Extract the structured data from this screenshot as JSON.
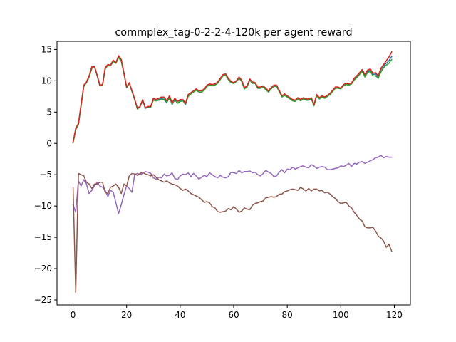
{
  "chart_data": {
    "type": "line",
    "title": "commplex_tag-0-2-2-4-120k per agent reward",
    "xlabel": "",
    "ylabel": "",
    "xlim": [
      -6,
      126
    ],
    "ylim": [
      -25.8,
      16.3
    ],
    "xticks": [
      0,
      20,
      40,
      60,
      80,
      100,
      120
    ],
    "yticks": [
      15,
      10,
      5,
      0,
      -5,
      -10,
      -15,
      -20,
      -25
    ],
    "xtick_labels": [
      "0",
      "20",
      "40",
      "60",
      "80",
      "100",
      "120"
    ],
    "ytick_labels": [
      "15",
      "10",
      "5",
      "0",
      "−5",
      "−10",
      "−15",
      "−20",
      "−25"
    ],
    "grid": false,
    "legend": "none",
    "series": [
      {
        "color": "#1f77b4",
        "values": [
          0.1,
          2.2,
          3.0,
          6.0,
          9.1,
          9.7,
          10.6,
          12.0,
          12.2,
          10.8,
          9.2,
          9.3,
          11.9,
          12.5,
          12.4,
          13.1,
          12.8,
          13.8,
          13.2,
          11.2,
          8.9,
          9.6,
          8.3,
          7.0,
          5.5,
          5.8,
          6.9,
          5.6,
          5.8,
          5.8,
          7.0,
          6.8,
          7.0,
          7.2,
          7.0,
          6.5,
          7.4,
          6.2,
          7.0,
          6.4,
          6.8,
          6.8,
          6.2,
          7.6,
          7.9,
          8.2,
          8.5,
          8.2,
          8.2,
          8.5,
          9.1,
          9.4,
          9.2,
          9.3,
          9.6,
          10.2,
          10.8,
          11.0,
          10.2,
          9.7,
          9.6,
          9.9,
          10.4,
          9.9,
          8.7,
          9.1,
          10.1,
          9.6,
          9.6,
          8.8,
          8.8,
          9.0,
          8.7,
          8.2,
          8.8,
          9.2,
          9.2,
          8.3,
          7.5,
          7.7,
          7.4,
          7.2,
          6.8,
          6.8,
          7.2,
          6.9,
          7.2,
          7.0,
          7.0,
          7.2,
          6.1,
          7.7,
          7.1,
          7.5,
          7.3,
          7.6,
          7.9,
          8.4,
          8.9,
          8.9,
          8.7,
          9.3,
          9.5,
          9.4,
          9.5,
          10.2,
          10.6,
          11.1,
          11.6,
          10.8,
          11.5,
          11.7,
          11.0,
          11.1,
          10.6,
          11.8,
          12.4,
          12.8,
          13.2,
          13.9
        ]
      },
      {
        "color": "#ff7f0e",
        "values": [
          0.2,
          2.4,
          3.2,
          6.2,
          9.3,
          9.8,
          10.8,
          12.2,
          12.3,
          10.9,
          9.3,
          9.4,
          12.1,
          12.6,
          12.5,
          13.3,
          12.9,
          14.0,
          13.4,
          11.3,
          9.0,
          9.7,
          8.4,
          7.1,
          5.6,
          5.9,
          7.0,
          5.7,
          5.9,
          5.9,
          7.2,
          7.0,
          7.2,
          7.4,
          7.4,
          6.8,
          7.6,
          6.5,
          7.2,
          6.7,
          7.0,
          7.0,
          6.4,
          7.8,
          8.1,
          8.4,
          8.7,
          8.4,
          8.4,
          8.7,
          9.3,
          9.5,
          9.4,
          9.5,
          9.8,
          10.4,
          11.0,
          11.1,
          10.4,
          9.9,
          9.7,
          10.0,
          10.6,
          10.1,
          8.9,
          9.2,
          10.3,
          9.8,
          9.7,
          9.0,
          9.0,
          9.2,
          8.8,
          8.4,
          8.9,
          9.3,
          9.3,
          8.5,
          7.6,
          7.9,
          7.6,
          7.3,
          7.0,
          6.9,
          7.3,
          7.0,
          7.3,
          7.1,
          7.1,
          7.3,
          6.2,
          7.8,
          7.3,
          7.6,
          7.4,
          7.7,
          8.0,
          8.5,
          9.0,
          9.0,
          8.8,
          9.4,
          9.6,
          9.5,
          9.6,
          10.4,
          10.8,
          11.3,
          11.8,
          11.0,
          11.7,
          11.9,
          11.2,
          11.3,
          10.8,
          12.0,
          12.6,
          13.2,
          13.8,
          14.6
        ]
      },
      {
        "color": "#2ca02c",
        "values": [
          0.1,
          2.2,
          3.0,
          6.0,
          9.1,
          9.7,
          10.6,
          12.0,
          12.2,
          10.8,
          9.2,
          9.3,
          11.9,
          12.5,
          12.4,
          13.1,
          12.8,
          13.7,
          13.1,
          11.1,
          8.9,
          9.6,
          8.3,
          7.0,
          5.5,
          5.8,
          6.9,
          5.6,
          5.8,
          5.8,
          6.9,
          6.8,
          6.9,
          7.0,
          7.1,
          6.6,
          7.2,
          6.3,
          7.0,
          6.4,
          6.7,
          6.8,
          6.3,
          7.5,
          7.9,
          8.2,
          8.5,
          8.2,
          8.2,
          8.5,
          9.1,
          9.3,
          9.2,
          9.3,
          9.6,
          10.2,
          10.8,
          10.9,
          10.2,
          9.7,
          9.6,
          9.9,
          10.4,
          9.9,
          8.7,
          9.0,
          10.1,
          9.6,
          9.6,
          8.8,
          8.8,
          9.0,
          8.6,
          8.2,
          8.7,
          9.1,
          9.1,
          8.3,
          7.4,
          7.7,
          7.4,
          7.1,
          6.8,
          6.7,
          7.1,
          6.8,
          7.1,
          6.9,
          6.9,
          7.1,
          6.0,
          7.6,
          7.1,
          7.4,
          7.2,
          7.5,
          7.8,
          8.3,
          8.8,
          8.8,
          8.7,
          9.2,
          9.4,
          9.3,
          9.5,
          10.1,
          10.5,
          11.0,
          11.5,
          10.6,
          11.3,
          11.5,
          10.8,
          10.8,
          10.4,
          11.4,
          12.1,
          12.5,
          12.8,
          13.4
        ]
      },
      {
        "color": "#d62728",
        "values": [
          0.2,
          2.4,
          3.2,
          6.2,
          9.3,
          9.8,
          10.8,
          12.2,
          12.3,
          10.9,
          9.3,
          9.4,
          12.1,
          12.6,
          12.5,
          13.3,
          12.9,
          14.0,
          13.4,
          11.3,
          9.0,
          9.7,
          8.4,
          7.1,
          5.6,
          5.9,
          7.0,
          5.7,
          5.9,
          5.9,
          7.2,
          7.0,
          7.2,
          7.4,
          7.4,
          6.8,
          7.6,
          6.5,
          7.2,
          6.7,
          7.0,
          7.0,
          6.4,
          7.8,
          8.1,
          8.4,
          8.7,
          8.4,
          8.4,
          8.7,
          9.3,
          9.5,
          9.4,
          9.5,
          9.8,
          10.4,
          11.0,
          11.1,
          10.4,
          9.9,
          9.7,
          10.0,
          10.6,
          10.1,
          8.9,
          9.2,
          10.3,
          9.8,
          9.7,
          9.0,
          9.0,
          9.2,
          8.8,
          8.4,
          8.9,
          9.3,
          9.3,
          8.5,
          7.6,
          7.9,
          7.6,
          7.3,
          7.0,
          6.9,
          7.3,
          7.0,
          7.3,
          7.1,
          7.1,
          7.3,
          6.2,
          7.8,
          7.3,
          7.6,
          7.4,
          7.7,
          8.0,
          8.5,
          9.0,
          9.0,
          8.8,
          9.4,
          9.6,
          9.5,
          9.6,
          10.4,
          10.8,
          11.3,
          11.8,
          11.0,
          11.7,
          11.9,
          11.2,
          11.3,
          10.8,
          12.0,
          12.6,
          13.2,
          13.8,
          14.6
        ]
      },
      {
        "color": "#9467bd",
        "values": [
          -9.8,
          -11.0,
          -6.0,
          -6.8,
          -5.8,
          -6.5,
          -8.0,
          -7.5,
          -6.8,
          -6.2,
          -6.8,
          -7.0,
          -7.5,
          -8.5,
          -7.5,
          -7.8,
          -9.5,
          -11.2,
          -9.8,
          -8.2,
          -6.8,
          -7.2,
          -7.8,
          -5.0,
          -4.8,
          -5.0,
          -4.8,
          -4.5,
          -4.6,
          -4.8,
          -5.5,
          -5.7,
          -5.4,
          -5.5,
          -4.9,
          -5.2,
          -5.1,
          -4.7,
          -5.6,
          -5.8,
          -5.2,
          -4.9,
          -5.0,
          -4.7,
          -5.3,
          -4.8,
          -5.2,
          -5.7,
          -5.4,
          -5.1,
          -5.3,
          -4.7,
          -5.0,
          -5.3,
          -5.5,
          -5.1,
          -5.4,
          -5.5,
          -5.3,
          -4.6,
          -4.7,
          -4.8,
          -4.3,
          -4.7,
          -4.5,
          -4.5,
          -4.4,
          -4.7,
          -4.6,
          -5.0,
          -5.2,
          -4.8,
          -4.3,
          -4.6,
          -4.8,
          -5.3,
          -5.2,
          -4.6,
          -4.2,
          -4.7,
          -4.1,
          -4.2,
          -3.8,
          -4.1,
          -3.9,
          -3.7,
          -3.6,
          -3.8,
          -3.9,
          -3.4,
          -3.6,
          -4.0,
          -3.8,
          -3.7,
          -3.8,
          -4.2,
          -4.2,
          -4.1,
          -4.0,
          -3.9,
          -3.6,
          -3.7,
          -3.5,
          -3.2,
          -3.7,
          -3.2,
          -3.3,
          -3.0,
          -2.9,
          -3.2,
          -3.0,
          -2.8,
          -2.6,
          -2.3,
          -2.2,
          -1.9,
          -2.3,
          -2.1,
          -2.2,
          -2.2
        ]
      },
      {
        "color": "#8c564b",
        "values": [
          -7.0,
          -23.8,
          -4.8,
          -5.0,
          -5.2,
          -6.2,
          -6.5,
          -7.2,
          -6.5,
          -6.5,
          -6.2,
          -6.2,
          -7.8,
          -8.0,
          -7.0,
          -6.8,
          -6.5,
          -7.0,
          -8.0,
          -6.5,
          -6.8,
          -5.2,
          -4.8,
          -4.9,
          -5.1,
          -4.8,
          -4.6,
          -4.9,
          -5.0,
          -5.2,
          -5.0,
          -5.4,
          -5.8,
          -6.0,
          -6.2,
          -6.0,
          -6.3,
          -6.5,
          -6.6,
          -6.8,
          -7.2,
          -7.5,
          -7.3,
          -7.6,
          -8.0,
          -8.2,
          -8.4,
          -8.6,
          -9.0,
          -9.4,
          -9.3,
          -9.5,
          -10.1,
          -10.3,
          -10.9,
          -11.0,
          -10.9,
          -10.8,
          -10.4,
          -10.6,
          -10.1,
          -10.5,
          -11.0,
          -10.8,
          -10.3,
          -10.5,
          -10.6,
          -9.9,
          -9.6,
          -9.5,
          -9.3,
          -9.2,
          -8.7,
          -8.6,
          -8.5,
          -8.6,
          -8.5,
          -8.1,
          -8.1,
          -7.7,
          -7.6,
          -7.4,
          -7.3,
          -7.4,
          -7.5,
          -7.0,
          -7.3,
          -7.6,
          -7.2,
          -7.6,
          -7.3,
          -7.3,
          -7.6,
          -7.5,
          -7.9,
          -7.8,
          -8.1,
          -8.5,
          -8.8,
          -9.3,
          -9.6,
          -9.5,
          -9.4,
          -10.0,
          -10.3,
          -11.0,
          -11.5,
          -12.1,
          -12.4,
          -13.3,
          -13.5,
          -13.5,
          -13.4,
          -14.0,
          -14.8,
          -15.1,
          -15.6,
          -16.6,
          -16.1,
          -17.2
        ]
      }
    ]
  }
}
